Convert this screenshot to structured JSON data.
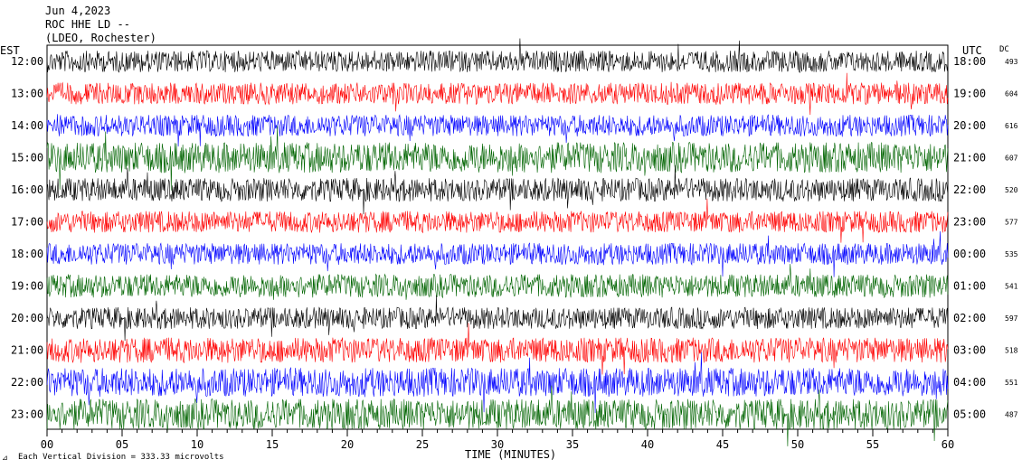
{
  "header": {
    "date": "Jun 4,2023",
    "station": "ROC HHE LD --",
    "network": "(LDEO, Rochester)"
  },
  "labels": {
    "left_tz": "EST",
    "right_tz": "UTC",
    "dc": "DC",
    "time_axis": "TIME (MINUTES)",
    "scale_note": "Each Vertical Division = 333.33 microvolts"
  },
  "colors": [
    "#000000",
    "#ff0000",
    "#0000ff",
    "#006400"
  ],
  "chart_data": {
    "type": "line",
    "title": "",
    "xlabel": "TIME (MINUTES)",
    "ylabel": "",
    "xlim": [
      0,
      60
    ],
    "x_ticks": [
      "00",
      "05",
      "10",
      "15",
      "20",
      "25",
      "30",
      "35",
      "40",
      "45",
      "50",
      "55",
      "60"
    ],
    "grid": false,
    "series": [
      {
        "est": "12:00",
        "utc": "18:00",
        "dc": "493",
        "color": "#000000",
        "activity": 0.6
      },
      {
        "est": "13:00",
        "utc": "19:00",
        "dc": "604",
        "color": "#ff0000",
        "activity": 0.6
      },
      {
        "est": "14:00",
        "utc": "20:00",
        "dc": "616",
        "color": "#0000ff",
        "activity": 0.6
      },
      {
        "est": "15:00",
        "utc": "21:00",
        "dc": "607",
        "color": "#006400",
        "activity": 0.85
      },
      {
        "est": "16:00",
        "utc": "22:00",
        "dc": "520",
        "color": "#000000",
        "activity": 0.65
      },
      {
        "est": "17:00",
        "utc": "23:00",
        "dc": "577",
        "color": "#ff0000",
        "activity": 0.6
      },
      {
        "est": "18:00",
        "utc": "00:00",
        "dc": "535",
        "color": "#0000ff",
        "activity": 0.6
      },
      {
        "est": "19:00",
        "utc": "01:00",
        "dc": "541",
        "color": "#006400",
        "activity": 0.65
      },
      {
        "est": "20:00",
        "utc": "02:00",
        "dc": "597",
        "color": "#000000",
        "activity": 0.6
      },
      {
        "est": "21:00",
        "utc": "03:00",
        "dc": "518",
        "color": "#ff0000",
        "activity": 0.7
      },
      {
        "est": "22:00",
        "utc": "04:00",
        "dc": "551",
        "color": "#0000ff",
        "activity": 0.8
      },
      {
        "est": "23:00",
        "utc": "05:00",
        "dc": "487",
        "color": "#006400",
        "activity": 0.85
      }
    ]
  }
}
